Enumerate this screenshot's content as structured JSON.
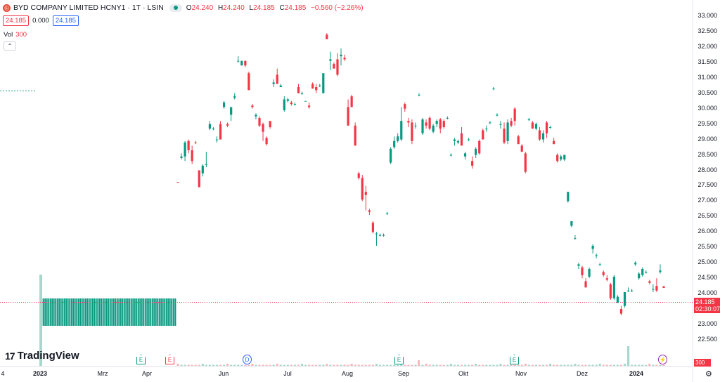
{
  "legend": {
    "symbol_icon": "exchange-logo-icon",
    "symbol_text": "BYD COMPANY LIMITED HCNY1",
    "interval": "1T",
    "exchange": "LSIN",
    "dot": "·",
    "o_label": "O",
    "o_value": "24.240",
    "h_label": "H",
    "h_value": "24.240",
    "l_label": "L",
    "l_value": "24.185",
    "c_label": "C",
    "c_value": "24.185",
    "change": "−0.560 (−2.26%)"
  },
  "quote": {
    "bid": "24.185",
    "spread": "0.000",
    "ask": "24.185"
  },
  "volume_legend": {
    "label": "Vol",
    "value": "300"
  },
  "collapse_icon": "chevron-up-icon",
  "price_axis": [
    "33.000",
    "32.500",
    "32.000",
    "31.500",
    "31.000",
    "30.500",
    "30.000",
    "29.500",
    "29.000",
    "28.500",
    "28.000",
    "27.500",
    "27.000",
    "26.500",
    "26.000",
    "25.500",
    "25.000",
    "24.500",
    "24.000",
    "23.500",
    "23.000",
    "22.500"
  ],
  "last_price": {
    "price": "24.185",
    "countdown": "02:30:07"
  },
  "volume_axis_label": "300",
  "time_axis": [
    {
      "label": "4",
      "bold": false
    },
    {
      "label": "2023",
      "bold": true
    },
    {
      "label": "Mrz",
      "bold": false
    },
    {
      "label": "Apr",
      "bold": false
    },
    {
      "label": "Jun",
      "bold": false
    },
    {
      "label": "Jul",
      "bold": false
    },
    {
      "label": "Aug",
      "bold": false
    },
    {
      "label": "Sep",
      "bold": false
    },
    {
      "label": "Okt",
      "bold": false
    },
    {
      "label": "Nov",
      "bold": false
    },
    {
      "label": "Dez",
      "bold": false
    },
    {
      "label": "2024",
      "bold": true
    }
  ],
  "events": [
    {
      "type": "e-green",
      "label": "E"
    },
    {
      "type": "e-red",
      "label": "E"
    },
    {
      "type": "d-blue",
      "label": "D"
    },
    {
      "type": "e-green",
      "label": "E"
    },
    {
      "type": "e-green",
      "label": "E"
    },
    {
      "type": "bolt",
      "label": "⚡"
    }
  ],
  "brand": {
    "mark": "17",
    "name": "TradingView"
  },
  "settings_icon": "gear-icon",
  "colors": {
    "up": "#089981",
    "down": "#f23645",
    "accent": "#2962ff"
  },
  "chart_data": {
    "type": "candlestick",
    "price_range": [
      22.5,
      33.0
    ],
    "candles": [
      {
        "o": 27.62,
        "h": 27.62,
        "l": 27.6,
        "c": 27.61
      },
      {
        "o": 28.4,
        "h": 28.55,
        "l": 28.35,
        "c": 28.45
      },
      {
        "o": 28.45,
        "h": 28.95,
        "l": 28.3,
        "c": 28.9
      },
      {
        "o": 28.95,
        "h": 29.0,
        "l": 28.55,
        "c": 28.65
      },
      {
        "o": 28.65,
        "h": 28.8,
        "l": 28.2,
        "c": 28.3
      },
      {
        "o": 28.9,
        "h": 28.95,
        "l": 28.85,
        "c": 28.88
      },
      {
        "o": 28.0,
        "h": 28.0,
        "l": 27.45,
        "c": 27.45
      },
      {
        "o": 27.9,
        "h": 28.2,
        "l": 27.8,
        "c": 28.15
      },
      {
        "o": 28.2,
        "h": 28.6,
        "l": 28.1,
        "c": 28.2
      },
      {
        "o": 29.35,
        "h": 29.6,
        "l": 29.3,
        "c": 29.5
      },
      {
        "o": 29.35,
        "h": 29.4,
        "l": 29.3,
        "c": 29.35
      },
      {
        "o": 29.0,
        "h": 29.1,
        "l": 28.9,
        "c": 29.0
      },
      {
        "o": 29.5,
        "h": 29.6,
        "l": 29.0,
        "c": 29.0
      },
      {
        "o": 30.05,
        "h": 30.25,
        "l": 30.0,
        "c": 30.2
      },
      {
        "o": 29.5,
        "h": 29.55,
        "l": 29.4,
        "c": 29.45
      },
      {
        "o": 29.8,
        "h": 30.05,
        "l": 29.6,
        "c": 30.05
      },
      {
        "o": 30.35,
        "h": 30.5,
        "l": 30.3,
        "c": 30.4
      },
      {
        "o": 31.55,
        "h": 31.7,
        "l": 31.5,
        "c": 31.55
      },
      {
        "o": 31.4,
        "h": 31.55,
        "l": 31.4,
        "c": 31.55
      },
      {
        "o": 31.55,
        "h": 31.55,
        "l": 31.35,
        "c": 31.4
      },
      {
        "o": 31.15,
        "h": 31.2,
        "l": 30.6,
        "c": 30.6
      },
      {
        "o": 30.1,
        "h": 30.15,
        "l": 30.0,
        "c": 30.05
      },
      {
        "o": 29.75,
        "h": 29.85,
        "l": 29.65,
        "c": 29.8
      },
      {
        "o": 29.7,
        "h": 29.75,
        "l": 29.4,
        "c": 29.45
      },
      {
        "o": 29.5,
        "h": 29.55,
        "l": 28.95,
        "c": 29.25
      },
      {
        "o": 29.05,
        "h": 29.1,
        "l": 28.8,
        "c": 28.85
      },
      {
        "o": 29.6,
        "h": 29.6,
        "l": 29.35,
        "c": 29.4
      },
      {
        "o": 30.8,
        "h": 30.95,
        "l": 30.7,
        "c": 30.85
      },
      {
        "o": 31.1,
        "h": 31.3,
        "l": 30.8,
        "c": 30.8
      },
      {
        "o": 30.7,
        "h": 30.8,
        "l": 30.7,
        "c": 30.75
      },
      {
        "o": 29.95,
        "h": 30.4,
        "l": 29.9,
        "c": 30.3
      },
      {
        "o": 30.25,
        "h": 30.35,
        "l": 30.2,
        "c": 30.3
      },
      {
        "o": 30.2,
        "h": 30.25,
        "l": 30.1,
        "c": 30.15
      },
      {
        "o": 30.15,
        "h": 30.2,
        "l": 30.1,
        "c": 30.15
      },
      {
        "o": 30.7,
        "h": 30.8,
        "l": 30.5,
        "c": 30.5
      },
      {
        "o": 30.5,
        "h": 30.55,
        "l": 30.45,
        "c": 30.5
      },
      {
        "o": 30.25,
        "h": 30.25,
        "l": 30.25,
        "c": 30.25
      },
      {
        "o": 30.1,
        "h": 30.2,
        "l": 30.0,
        "c": 30.05
      },
      {
        "o": 30.8,
        "h": 30.85,
        "l": 30.65,
        "c": 30.65
      },
      {
        "o": 30.7,
        "h": 30.8,
        "l": 30.5,
        "c": 30.6
      },
      {
        "o": 30.75,
        "h": 30.8,
        "l": 30.7,
        "c": 30.75
      },
      {
        "o": 30.5,
        "h": 31.15,
        "l": 30.5,
        "c": 31.15
      },
      {
        "o": 32.4,
        "h": 32.45,
        "l": 32.25,
        "c": 32.25
      },
      {
        "o": 31.55,
        "h": 31.85,
        "l": 31.25,
        "c": 31.6
      },
      {
        "o": 31.45,
        "h": 31.5,
        "l": 31.3,
        "c": 31.3
      },
      {
        "o": 31.6,
        "h": 31.8,
        "l": 31.05,
        "c": 31.1
      },
      {
        "o": 31.7,
        "h": 31.95,
        "l": 31.4,
        "c": 31.75
      },
      {
        "o": 31.65,
        "h": 31.75,
        "l": 31.55,
        "c": 31.6
      },
      {
        "o": 30.05,
        "h": 30.3,
        "l": 29.45,
        "c": 29.45
      },
      {
        "o": 30.4,
        "h": 30.45,
        "l": 30.05,
        "c": 30.05
      },
      {
        "o": 29.45,
        "h": 29.55,
        "l": 28.8,
        "c": 28.8
      },
      {
        "o": 27.9,
        "h": 27.95,
        "l": 27.7,
        "c": 27.75
      },
      {
        "o": 27.75,
        "h": 27.85,
        "l": 27.0,
        "c": 27.05
      },
      {
        "o": 27.3,
        "h": 27.5,
        "l": 26.7,
        "c": 27.2
      },
      {
        "o": 26.7,
        "h": 26.75,
        "l": 26.55,
        "c": 26.65
      },
      {
        "o": 26.3,
        "h": 26.35,
        "l": 25.95,
        "c": 26.0
      },
      {
        "o": 25.95,
        "h": 26.0,
        "l": 25.55,
        "c": 25.95
      },
      {
        "o": 25.9,
        "h": 25.95,
        "l": 25.85,
        "c": 25.9
      },
      {
        "o": 25.9,
        "h": 25.95,
        "l": 25.85,
        "c": 25.9
      },
      {
        "o": 26.6,
        "h": 26.65,
        "l": 26.55,
        "c": 26.6
      },
      {
        "o": 28.25,
        "h": 28.75,
        "l": 28.2,
        "c": 28.7
      },
      {
        "o": 28.75,
        "h": 29.1,
        "l": 28.7,
        "c": 28.95
      },
      {
        "o": 28.95,
        "h": 29.2,
        "l": 28.9,
        "c": 29.1
      },
      {
        "o": 29.0,
        "h": 30.05,
        "l": 28.95,
        "c": 29.6
      },
      {
        "o": 30.15,
        "h": 30.2,
        "l": 29.9,
        "c": 30.0
      },
      {
        "o": 29.6,
        "h": 29.7,
        "l": 29.4,
        "c": 29.55
      },
      {
        "o": 29.55,
        "h": 29.65,
        "l": 28.85,
        "c": 28.95
      },
      {
        "o": 29.45,
        "h": 29.55,
        "l": 29.35,
        "c": 29.45
      },
      {
        "o": 30.45,
        "h": 30.5,
        "l": 30.4,
        "c": 30.45
      },
      {
        "o": 29.2,
        "h": 29.7,
        "l": 29.15,
        "c": 29.65
      },
      {
        "o": 29.55,
        "h": 29.65,
        "l": 29.35,
        "c": 29.45
      },
      {
        "o": 29.7,
        "h": 29.75,
        "l": 29.3,
        "c": 29.35
      },
      {
        "o": 29.25,
        "h": 29.5,
        "l": 29.2,
        "c": 29.45
      },
      {
        "o": 29.5,
        "h": 29.65,
        "l": 29.4,
        "c": 29.6
      },
      {
        "o": 29.65,
        "h": 29.7,
        "l": 29.2,
        "c": 29.35
      },
      {
        "o": 29.6,
        "h": 29.65,
        "l": 29.35,
        "c": 29.4
      },
      {
        "o": 29.7,
        "h": 29.75,
        "l": 29.65,
        "c": 29.7
      },
      {
        "o": 28.5,
        "h": 28.55,
        "l": 28.45,
        "c": 28.5
      },
      {
        "o": 28.95,
        "h": 29.05,
        "l": 28.8,
        "c": 29.0
      },
      {
        "o": 28.9,
        "h": 29.0,
        "l": 28.85,
        "c": 28.95
      },
      {
        "o": 29.2,
        "h": 29.4,
        "l": 28.8,
        "c": 28.8
      },
      {
        "o": 28.45,
        "h": 28.6,
        "l": 28.35,
        "c": 28.55
      },
      {
        "o": 29.0,
        "h": 29.05,
        "l": 28.95,
        "c": 29.0
      },
      {
        "o": 28.3,
        "h": 28.45,
        "l": 28.05,
        "c": 28.15
      },
      {
        "o": 28.5,
        "h": 28.75,
        "l": 28.4,
        "c": 28.7
      },
      {
        "o": 28.95,
        "h": 29.0,
        "l": 28.5,
        "c": 28.55
      },
      {
        "o": 29.3,
        "h": 29.35,
        "l": 29.0,
        "c": 29.0
      },
      {
        "o": 29.35,
        "h": 29.45,
        "l": 29.25,
        "c": 29.35
      },
      {
        "o": 29.55,
        "h": 29.6,
        "l": 29.5,
        "c": 29.55
      },
      {
        "o": 30.65,
        "h": 30.7,
        "l": 30.6,
        "c": 30.65
      },
      {
        "o": 29.8,
        "h": 29.85,
        "l": 29.75,
        "c": 29.8
      },
      {
        "o": 29.5,
        "h": 29.6,
        "l": 29.35,
        "c": 29.5
      },
      {
        "o": 29.35,
        "h": 29.55,
        "l": 28.85,
        "c": 28.9
      },
      {
        "o": 28.95,
        "h": 29.65,
        "l": 28.85,
        "c": 29.55
      },
      {
        "o": 29.6,
        "h": 29.7,
        "l": 29.4,
        "c": 29.45
      },
      {
        "o": 30.0,
        "h": 30.05,
        "l": 29.45,
        "c": 29.6
      },
      {
        "o": 29.1,
        "h": 29.15,
        "l": 28.85,
        "c": 28.85
      },
      {
        "o": 28.8,
        "h": 28.85,
        "l": 28.6,
        "c": 28.6
      },
      {
        "o": 28.55,
        "h": 28.6,
        "l": 27.9,
        "c": 27.95
      },
      {
        "o": 29.65,
        "h": 29.7,
        "l": 29.6,
        "c": 29.65
      },
      {
        "o": 29.55,
        "h": 29.6,
        "l": 29.35,
        "c": 29.35
      },
      {
        "o": 29.35,
        "h": 29.55,
        "l": 29.3,
        "c": 29.5
      },
      {
        "o": 29.3,
        "h": 29.4,
        "l": 28.95,
        "c": 29.0
      },
      {
        "o": 29.0,
        "h": 29.3,
        "l": 28.9,
        "c": 29.2
      },
      {
        "o": 29.55,
        "h": 29.6,
        "l": 29.05,
        "c": 29.2
      },
      {
        "o": 29.4,
        "h": 29.45,
        "l": 29.35,
        "c": 29.4
      },
      {
        "o": 28.95,
        "h": 29.05,
        "l": 28.85,
        "c": 28.85
      },
      {
        "o": 28.5,
        "h": 28.55,
        "l": 28.25,
        "c": 28.3
      },
      {
        "o": 28.35,
        "h": 28.5,
        "l": 28.3,
        "c": 28.45
      },
      {
        "o": 28.35,
        "h": 28.5,
        "l": 28.3,
        "c": 28.5
      },
      {
        "o": 27.0,
        "h": 27.3,
        "l": 26.95,
        "c": 27.3
      },
      {
        "o": 26.2,
        "h": 26.35,
        "l": 26.15,
        "c": 26.35
      },
      {
        "o": 25.8,
        "h": 25.9,
        "l": 25.75,
        "c": 25.8
      },
      {
        "o": 24.9,
        "h": 25.0,
        "l": 24.8,
        "c": 24.95
      },
      {
        "o": 24.85,
        "h": 24.9,
        "l": 24.5,
        "c": 24.6
      },
      {
        "o": 24.4,
        "h": 24.5,
        "l": 24.2,
        "c": 24.2
      },
      {
        "o": 24.55,
        "h": 24.85,
        "l": 24.5,
        "c": 24.8
      },
      {
        "o": 25.45,
        "h": 25.6,
        "l": 25.3,
        "c": 25.55
      },
      {
        "o": 25.25,
        "h": 25.3,
        "l": 25.15,
        "c": 25.25
      },
      {
        "o": 24.95,
        "h": 25.0,
        "l": 24.9,
        "c": 24.95
      },
      {
        "o": 24.7,
        "h": 24.75,
        "l": 24.55,
        "c": 24.6
      },
      {
        "o": 24.5,
        "h": 24.6,
        "l": 24.4,
        "c": 24.45
      },
      {
        "o": 24.3,
        "h": 24.35,
        "l": 23.8,
        "c": 23.85
      },
      {
        "o": 23.85,
        "h": 24.6,
        "l": 23.8,
        "c": 24.55
      },
      {
        "o": 23.7,
        "h": 23.95,
        "l": 23.7,
        "c": 23.9
      },
      {
        "o": 23.5,
        "h": 23.6,
        "l": 23.3,
        "c": 23.35
      },
      {
        "o": 23.6,
        "h": 24.05,
        "l": 23.55,
        "c": 24.05
      },
      {
        "o": 24.1,
        "h": 24.2,
        "l": 24.05,
        "c": 24.1
      },
      {
        "o": 24.1,
        "h": 24.15,
        "l": 24.05,
        "c": 24.1
      },
      {
        "o": 24.95,
        "h": 25.05,
        "l": 24.9,
        "c": 25.0
      },
      {
        "o": 24.5,
        "h": 24.7,
        "l": 24.45,
        "c": 24.65
      },
      {
        "o": 24.6,
        "h": 24.85,
        "l": 24.55,
        "c": 24.8
      },
      {
        "o": 24.7,
        "h": 24.75,
        "l": 24.65,
        "c": 24.7
      },
      {
        "o": 24.4,
        "h": 24.45,
        "l": 24.3,
        "c": 24.35
      },
      {
        "o": 24.15,
        "h": 24.3,
        "l": 24.05,
        "c": 24.15
      },
      {
        "o": 24.25,
        "h": 24.5,
        "l": 24.05,
        "c": 24.1
      },
      {
        "o": 24.7,
        "h": 24.95,
        "l": 24.65,
        "c": 24.75
      },
      {
        "o": 24.24,
        "h": 24.24,
        "l": 24.185,
        "c": 24.185
      }
    ]
  }
}
